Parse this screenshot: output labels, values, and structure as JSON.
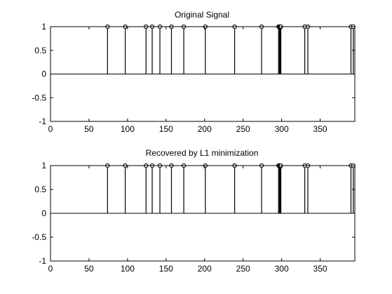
{
  "chart_data": [
    {
      "type": "stem",
      "title": "Original Signal",
      "xlim": [
        0,
        395
      ],
      "ylim": [
        -1,
        1
      ],
      "x_ticks": [
        0,
        50,
        100,
        150,
        200,
        250,
        300,
        350
      ],
      "y_ticks": [
        -1,
        -0.5,
        0,
        0.5,
        1
      ],
      "x_tick_labels": [
        "0",
        "50",
        "100",
        "150",
        "200",
        "250",
        "300",
        "350"
      ],
      "y_tick_labels": [
        "-1",
        "-0.5",
        "0",
        "0.5",
        "1"
      ],
      "grid": false,
      "x": [
        74,
        97,
        124,
        132,
        142,
        157,
        173,
        201,
        239,
        274,
        296,
        297,
        298,
        299,
        330,
        334,
        390,
        393
      ],
      "y": [
        1,
        1,
        1,
        1,
        1,
        1,
        1,
        1,
        1,
        1,
        1,
        1,
        1,
        1,
        1,
        1,
        1,
        1
      ],
      "color": "#000000"
    },
    {
      "type": "stem",
      "title": "Recovered by L1 minimization",
      "xlim": [
        0,
        395
      ],
      "ylim": [
        -1,
        1
      ],
      "x_ticks": [
        0,
        50,
        100,
        150,
        200,
        250,
        300,
        350
      ],
      "y_ticks": [
        -1,
        -0.5,
        0,
        0.5,
        1
      ],
      "x_tick_labels": [
        "0",
        "50",
        "100",
        "150",
        "200",
        "250",
        "300",
        "350"
      ],
      "y_tick_labels": [
        "-1",
        "-0.5",
        "0",
        "0.5",
        "1"
      ],
      "grid": false,
      "x": [
        74,
        97,
        124,
        132,
        142,
        157,
        173,
        201,
        239,
        274,
        296,
        297,
        298,
        299,
        330,
        334,
        390,
        393
      ],
      "y": [
        1,
        1,
        1,
        1,
        1,
        1,
        1,
        1,
        1,
        1,
        1,
        1,
        1,
        1,
        1,
        1,
        1,
        1
      ],
      "color": "#000000"
    }
  ]
}
